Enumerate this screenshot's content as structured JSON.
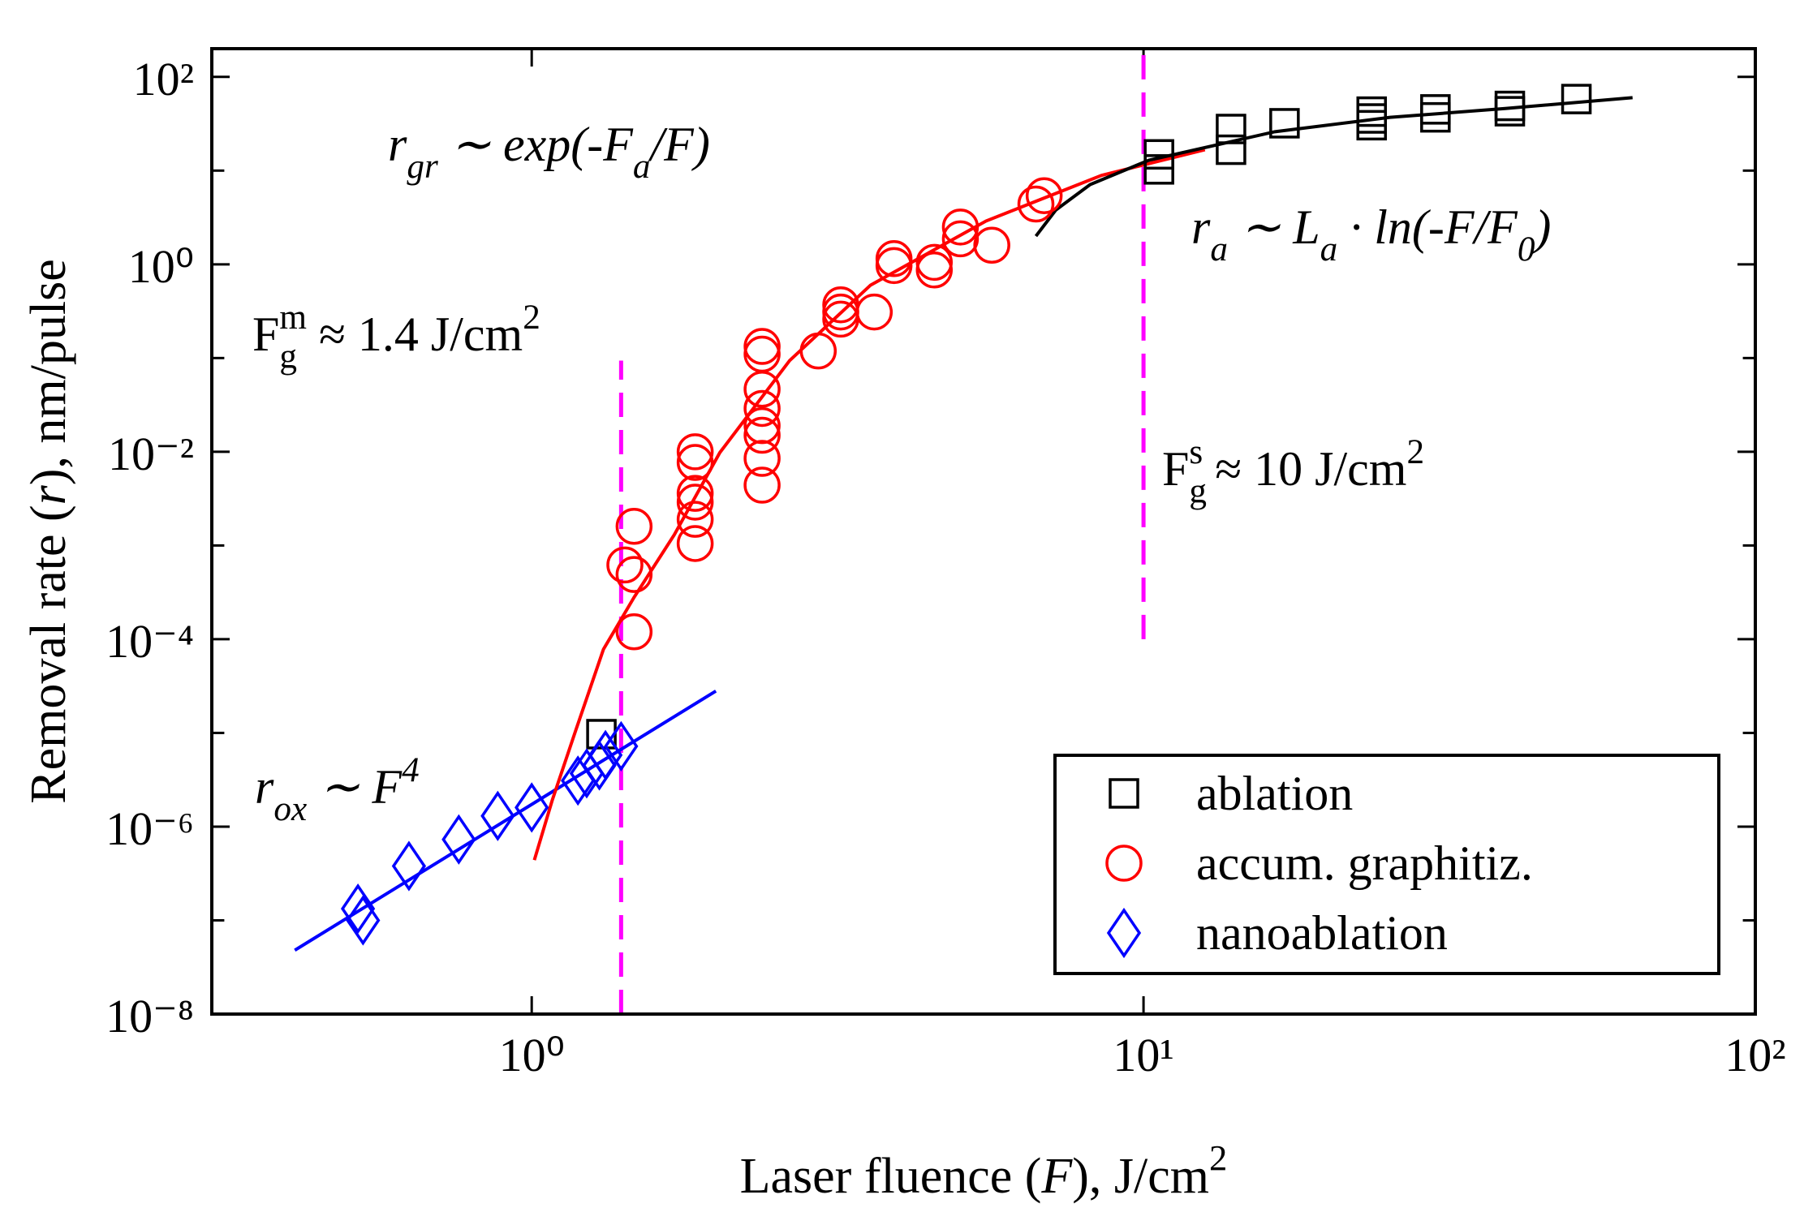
{
  "chart_data": {
    "type": "scatter",
    "xlabel": [
      {
        "text": "Laser fluence ("
      },
      {
        "text": "F",
        "style": "italic"
      },
      {
        "text": "), J/cm"
      },
      {
        "text": "2",
        "style": "sup"
      }
    ],
    "ylabel": [
      {
        "text": "Removal rate ("
      },
      {
        "text": "r",
        "style": "italic"
      },
      {
        "text": "), nm/pulse"
      }
    ],
    "xscale": "log",
    "yscale": "log",
    "xlim": [
      0.3,
      100
    ],
    "ylim": [
      1e-08,
      200
    ],
    "xticks": [
      {
        "value": 1,
        "label": "10⁰"
      },
      {
        "value": 10,
        "label": "10¹"
      },
      {
        "value": 100,
        "label": "10²"
      }
    ],
    "yticks": [
      {
        "value": 1e-08,
        "label": "10⁻⁸"
      },
      {
        "value": 1e-06,
        "label": "10⁻⁶"
      },
      {
        "value": 0.0001,
        "label": "10⁻⁴"
      },
      {
        "value": 0.01,
        "label": "10⁻²"
      },
      {
        "value": 1,
        "label": "10⁰"
      },
      {
        "value": 100,
        "label": "10²"
      }
    ],
    "yminor": [
      1e-07,
      1e-05,
      0.001,
      0.1,
      10
    ],
    "legend": "lower right",
    "series": [
      {
        "name": "ablation",
        "color": "#000000",
        "marker": "square",
        "x": [
          10.6,
          10.6,
          13.9,
          13.9,
          17.0,
          23.6,
          23.6,
          23.6,
          30,
          30,
          39.7,
          39.7,
          51,
          1.3
        ],
        "values": [
          14.9,
          10.3,
          27.8,
          16.7,
          32,
          42.6,
          36,
          30.5,
          45,
          37,
          49,
          43,
          58,
          9.7e-06
        ]
      },
      {
        "name": "accum. graphitiz.",
        "color": "#ff0000",
        "marker": "circle",
        "x": [
          1.47,
          1.42,
          1.47,
          1.47,
          1.85,
          1.85,
          1.85,
          1.85,
          1.85,
          1.85,
          2.38,
          2.38,
          2.38,
          2.38,
          2.38,
          2.38,
          2.38,
          2.38,
          2.94,
          3.2,
          3.2,
          3.2,
          3.63,
          3.91,
          3.91,
          4.55,
          4.55,
          5.02,
          5.02,
          5.65,
          6.67,
          6.88
        ],
        "values": [
          0.0016,
          0.00062,
          0.00049,
          0.00012,
          0.01,
          0.0077,
          0.0036,
          0.0029,
          0.0019,
          0.00105,
          0.133,
          0.11,
          0.0465,
          0.029,
          0.019,
          0.015,
          0.0085,
          0.0044,
          0.119,
          0.37,
          0.26,
          0.31,
          0.31,
          1.15,
          0.97,
          0.87,
          1.05,
          2.5,
          1.87,
          1.6,
          4.4,
          5.4
        ]
      },
      {
        "name": "nanoablation",
        "color": "#0000ff",
        "marker": "diamond",
        "x": [
          0.52,
          0.53,
          0.63,
          0.76,
          0.88,
          1.0,
          1.19,
          1.23,
          1.29,
          1.32,
          1.4
        ],
        "values": [
          1.33e-07,
          1e-07,
          3.8e-07,
          7.3e-07,
          1.3e-06,
          1.6e-06,
          3.1e-06,
          3.7e-06,
          4.5e-06,
          5.8e-06,
          7.2e-06
        ]
      }
    ],
    "fits": [
      {
        "color": "#0000ff",
        "x": [
          0.41,
          2.0
        ],
        "values": [
          4.8e-08,
          2.8e-05
        ]
      },
      {
        "color": "#ff0000",
        "x": [
          1.01,
          1.08,
          1.18,
          1.31,
          1.47,
          1.71,
          2.03,
          2.64,
          3.58,
          5.53,
          8.54,
          12.6
        ],
        "values": [
          4.4e-07,
          1.9e-06,
          1.06e-05,
          7.8e-05,
          0.00028,
          0.0013,
          0.0098,
          0.094,
          0.6,
          2.9,
          8.9,
          16.7
        ]
      },
      {
        "color": "#000000",
        "x": [
          6.67,
          7.19,
          8.18,
          10.2,
          16.4,
          25.3,
          39,
          63
        ],
        "values": [
          2.0,
          3.8,
          7.1,
          12.9,
          26,
          37,
          46,
          60
        ]
      }
    ],
    "vlines": [
      {
        "color": "#ff00ff",
        "x": 1.4,
        "y": [
          1e-08,
          0.094
        ]
      },
      {
        "color": "#ff00ff",
        "x": 10,
        "y": [
          0.0001,
          200
        ]
      }
    ],
    "annotations": [
      {
        "parts": [
          {
            "text": "r",
            "style": "italic"
          },
          {
            "text": "gr",
            "style": "sub-italic"
          },
          {
            "text": " ∼ exp(-F",
            "style": "italic"
          },
          {
            "text": "a",
            "style": "sub-italic"
          },
          {
            "text": "/F)",
            "style": "italic"
          }
        ]
      },
      {
        "parts": [
          {
            "text": "F"
          },
          {
            "text": "g",
            "style": "sub"
          },
          {
            "text": "m",
            "style": "supback"
          },
          {
            "text": " ≈ 1.4 J/cm"
          },
          {
            "text": "2",
            "style": "sup"
          }
        ]
      },
      {
        "parts": [
          {
            "text": "F"
          },
          {
            "text": "g",
            "style": "sub"
          },
          {
            "text": "s",
            "style": "supback"
          },
          {
            "text": " ≈ 10 J/cm"
          },
          {
            "text": "2",
            "style": "sup"
          }
        ]
      },
      {
        "parts": [
          {
            "text": "r",
            "style": "italic"
          },
          {
            "text": "a",
            "style": "sub-italic"
          },
          {
            "text": " ∼ L",
            "style": "italic"
          },
          {
            "text": "a",
            "style": "sub-italic"
          },
          {
            "text": " · ln(-F/F",
            "style": "italic"
          },
          {
            "text": "0",
            "style": "sub-italic"
          },
          {
            "text": ")",
            "style": "italic"
          }
        ]
      },
      {
        "parts": [
          {
            "text": "r",
            "style": "italic"
          },
          {
            "text": "ox",
            "style": "sub-italic"
          },
          {
            "text": " ∼ F",
            "style": "italic"
          },
          {
            "text": "4",
            "style": "sup-italic"
          }
        ]
      }
    ]
  }
}
